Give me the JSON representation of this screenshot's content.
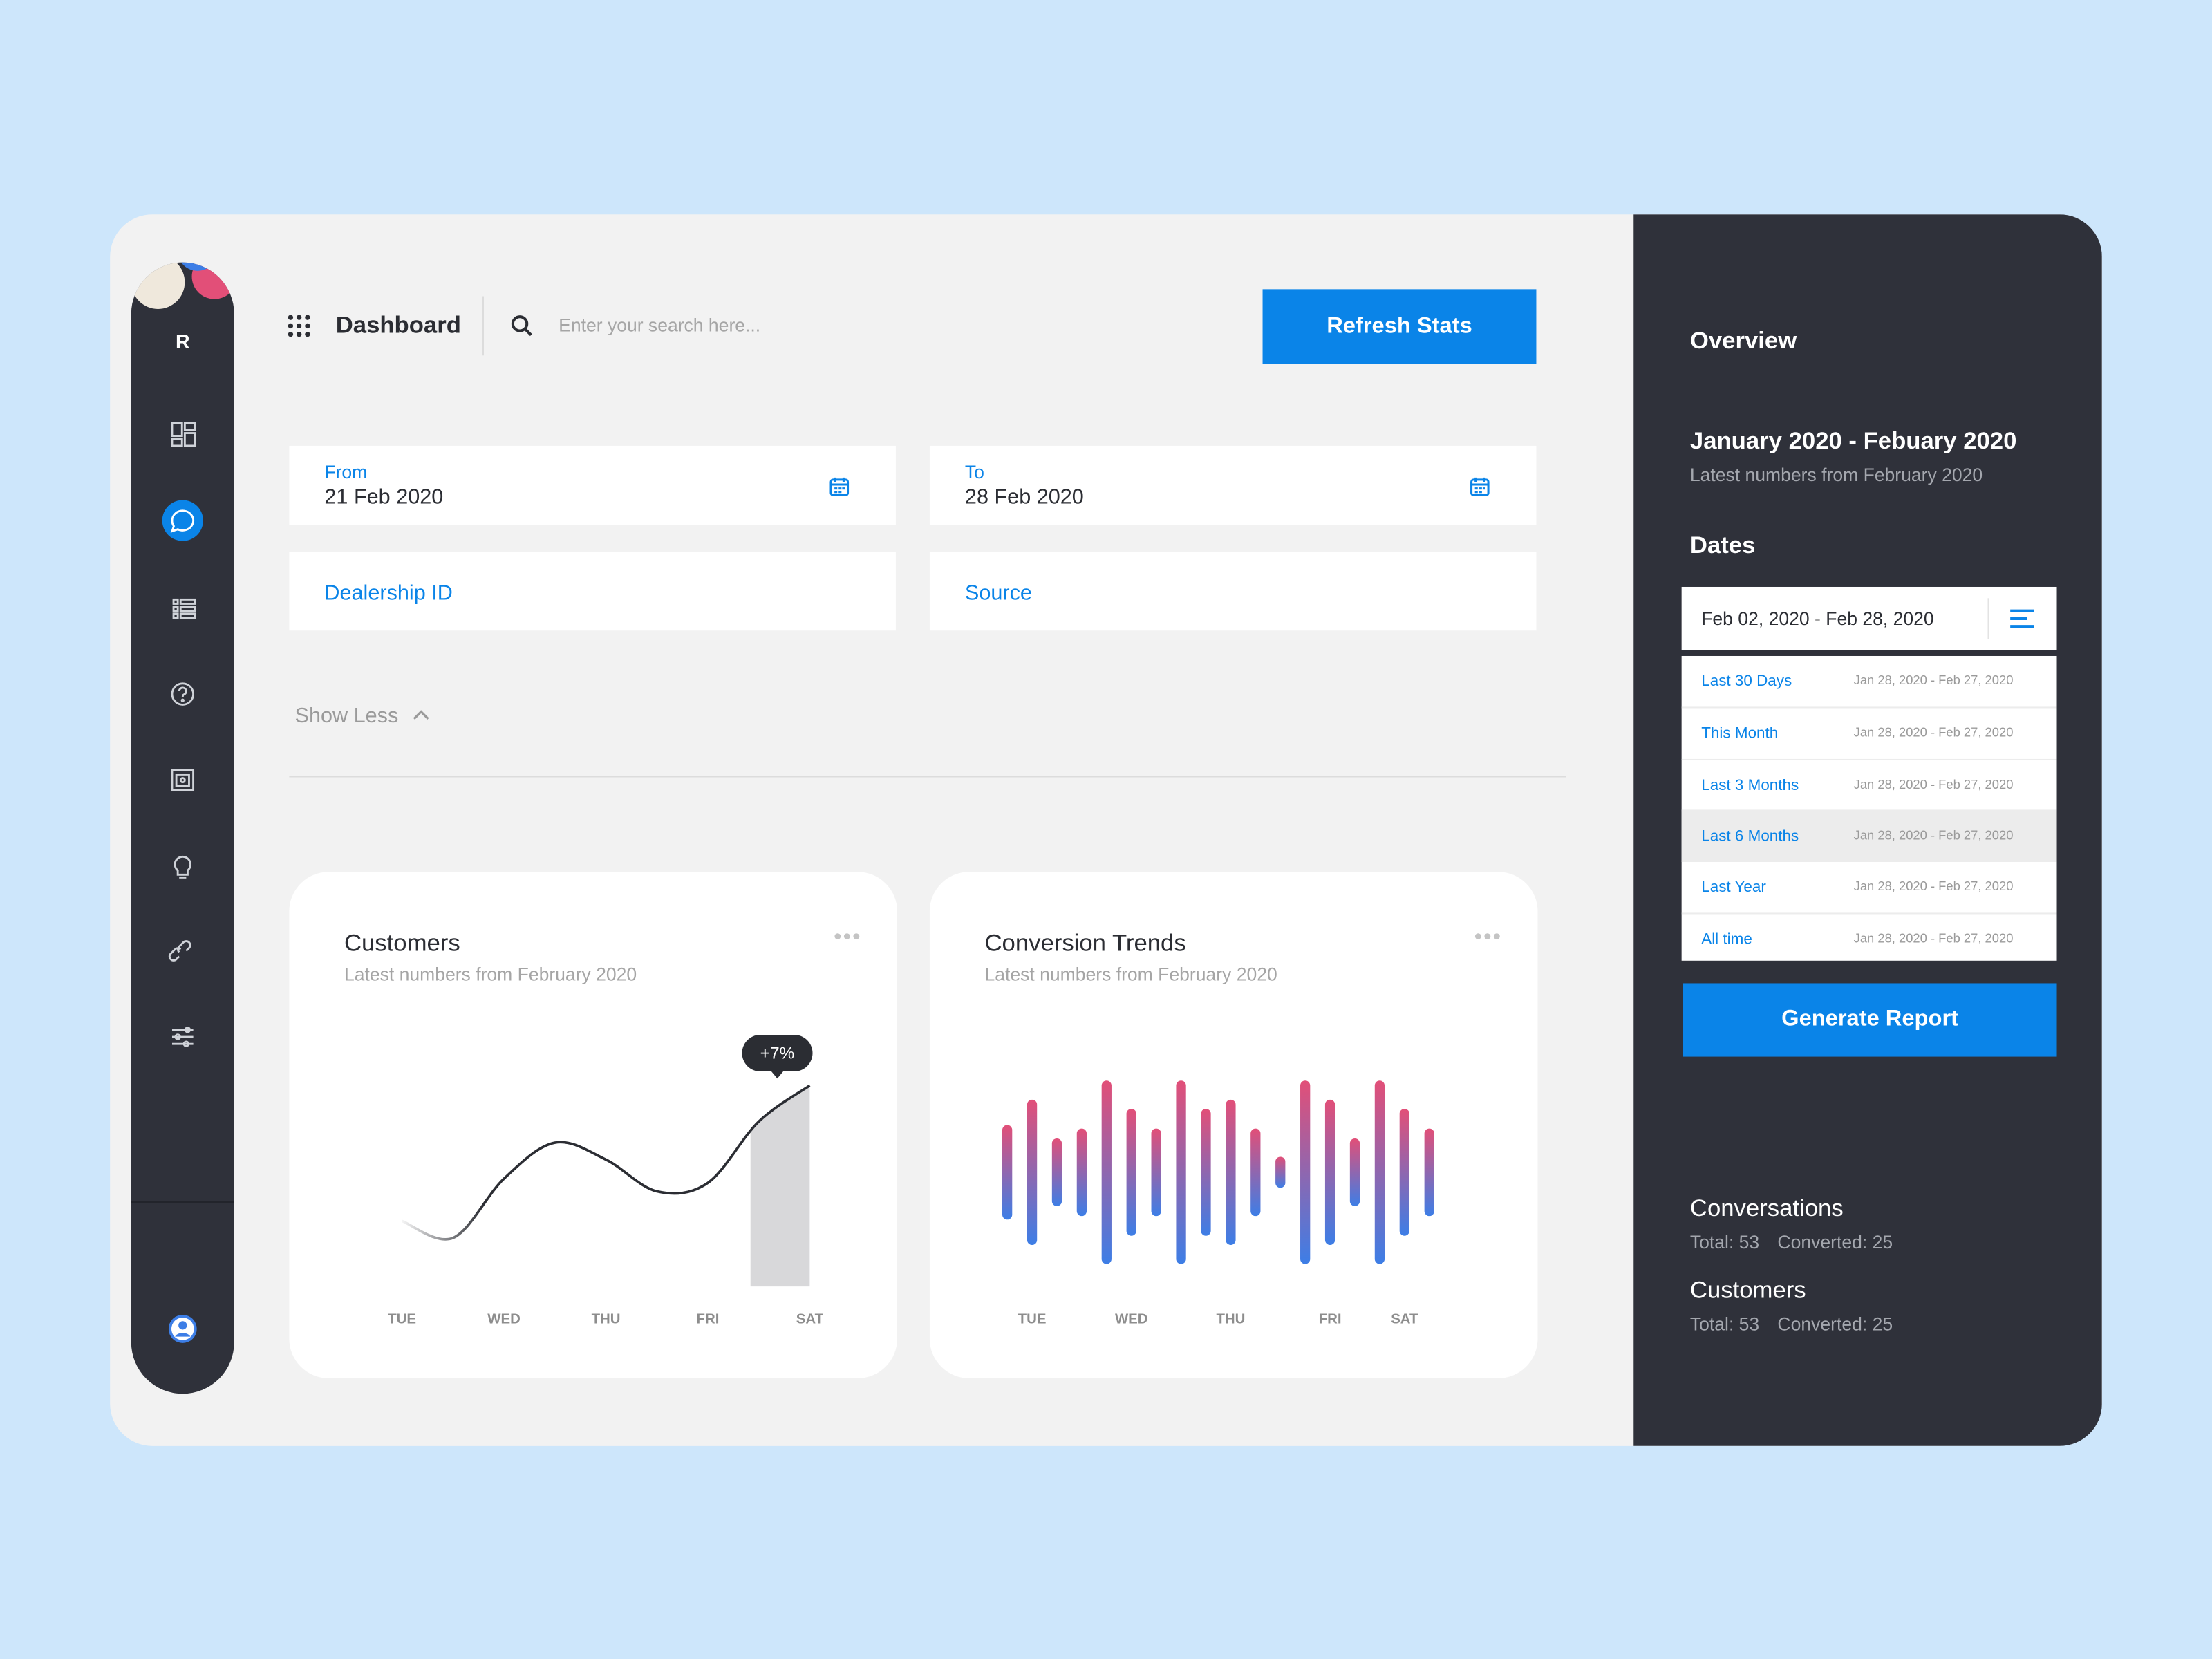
{
  "sidebar": {
    "logo": "R"
  },
  "header": {
    "title": "Dashboard",
    "search_placeholder": "Enter your search here...",
    "button": "Refresh Stats"
  },
  "filters": {
    "from": {
      "label": "From",
      "value": "21 Feb 2020"
    },
    "to": {
      "label": "To",
      "value": "28 Feb 2020"
    },
    "dealership": "Dealership ID",
    "source": "Source",
    "toggle": "Show Less"
  },
  "chart_data": [
    {
      "type": "line",
      "title": "Customers",
      "subtitle": "Latest numbers from February 2020",
      "categories": [
        "TUE",
        null,
        "WED",
        null,
        "THU",
        null,
        "FRI",
        null,
        "SAT"
      ],
      "values": [
        31,
        23,
        51,
        68,
        60,
        45,
        49,
        78,
        95
      ],
      "ylim": [
        0,
        100
      ],
      "color": "#2b2d33",
      "annotation": "+7%"
    },
    {
      "type": "bar",
      "title": "Conversion Trends",
      "subtitle": "Latest numbers from February 2020",
      "categories": [
        null,
        "TUE",
        null,
        null,
        null,
        "WED",
        null,
        null,
        null,
        "THU",
        null,
        null,
        null,
        "FRI",
        null,
        null,
        "SAT",
        null
      ],
      "values": [
        67,
        103,
        48,
        62,
        130,
        90,
        62,
        130,
        90,
        103,
        62,
        22,
        130,
        103,
        48,
        130,
        90,
        62
      ],
      "ylim": [
        0,
        140
      ],
      "color": [
        "#e24f78",
        "#3d7ee6"
      ]
    }
  ],
  "overview": {
    "title": "Overview",
    "period": "January 2020 - Febuary 2020",
    "subtitle": "Latest numbers from February 2020"
  },
  "dates": {
    "title": "Dates",
    "start": "Feb 02, 2020",
    "separator": "-",
    "end": "Feb 28, 2020",
    "hovered": 3,
    "options": [
      {
        "label": "Last 30 Days",
        "range": "Jan 28, 2020 - Feb 27, 2020"
      },
      {
        "label": "This Month",
        "range": "Jan 28, 2020 - Feb 27, 2020"
      },
      {
        "label": "Last 3 Months",
        "range": "Jan 28, 2020 - Feb 27, 2020"
      },
      {
        "label": "Last 6 Months",
        "range": "Jan 28, 2020 - Feb 27, 2020"
      },
      {
        "label": "Last Year",
        "range": "Jan 28, 2020 - Feb 27, 2020"
      },
      {
        "label": "All time",
        "range": "Jan 28, 2020 - Feb 27, 2020"
      }
    ],
    "button": "Generate Report"
  },
  "stats": [
    {
      "title": "Conversations",
      "total": "Total: 53",
      "converted": "Converted: 25"
    },
    {
      "title": "Customers",
      "total": "Total: 53",
      "converted": "Converted: 25"
    }
  ]
}
